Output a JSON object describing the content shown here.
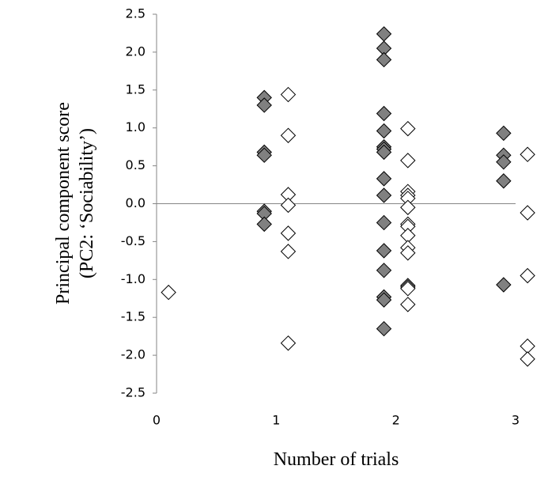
{
  "chart_data": {
    "type": "scatter",
    "xlabel": "Number of trials",
    "ylabel": [
      "Principal component score",
      "(PC2: ‘Sociability’)"
    ],
    "xlim": [
      0,
      3
    ],
    "xticks": [
      0,
      1,
      2,
      3
    ],
    "ylim": [
      -2.5,
      2.5
    ],
    "yticks": [
      -2.5,
      {
        "value": -2,
        "label": "-2.0"
      },
      -1.5,
      {
        "value": -1,
        "label": "-1.0"
      },
      -0.5,
      {
        "value": 0,
        "label": "0.0"
      },
      0.5,
      {
        "value": 1,
        "label": "1.0"
      },
      1.5,
      {
        "value": 2,
        "label": "2.0"
      },
      2.5
    ],
    "grid": false,
    "series": [
      {
        "color": "#808080",
        "x": [
          0.9,
          0.9,
          0.9,
          0.9,
          0.9,
          0.9,
          0.9,
          1.9,
          1.9,
          1.9,
          1.9,
          1.9,
          1.9,
          1.9,
          1.9,
          1.9,
          1.9,
          1.9,
          1.9,
          1.9,
          1.9,
          1.9,
          1.9,
          2.9,
          2.9,
          2.9,
          2.9,
          2.9
        ],
        "values": [
          1.4,
          1.3,
          0.68,
          0.64,
          -0.1,
          -0.13,
          -0.27,
          2.24,
          2.05,
          1.9,
          1.19,
          0.96,
          0.75,
          0.72,
          0.68,
          0.33,
          0.11,
          -0.25,
          -0.62,
          -0.88,
          -1.23,
          -1.27,
          -1.65,
          0.93,
          0.64,
          0.55,
          0.3,
          -1.07
        ]
      },
      {
        "color": "#ffffff",
        "x": [
          0.1,
          1.1,
          1.1,
          1.1,
          1.1,
          1.1,
          1.1,
          1.1,
          2.1,
          2.1,
          2.1,
          2.1,
          2.1,
          2.1,
          2.1,
          2.1,
          2.1,
          2.1,
          2.1,
          2.1,
          2.1,
          2.1,
          2.1,
          3.1,
          3.1,
          3.1,
          3.1,
          3.1
        ],
        "values": [
          -1.17,
          1.44,
          0.9,
          0.12,
          -0.02,
          -0.39,
          -0.63,
          -1.84,
          0.99,
          0.57,
          0.16,
          0.11,
          0.07,
          -0.05,
          -0.27,
          -0.3,
          -0.42,
          -0.58,
          -0.65,
          -1.08,
          -1.1,
          -1.12,
          -1.33,
          0.65,
          -0.12,
          -0.95,
          -1.88,
          -2.05
        ]
      }
    ]
  }
}
